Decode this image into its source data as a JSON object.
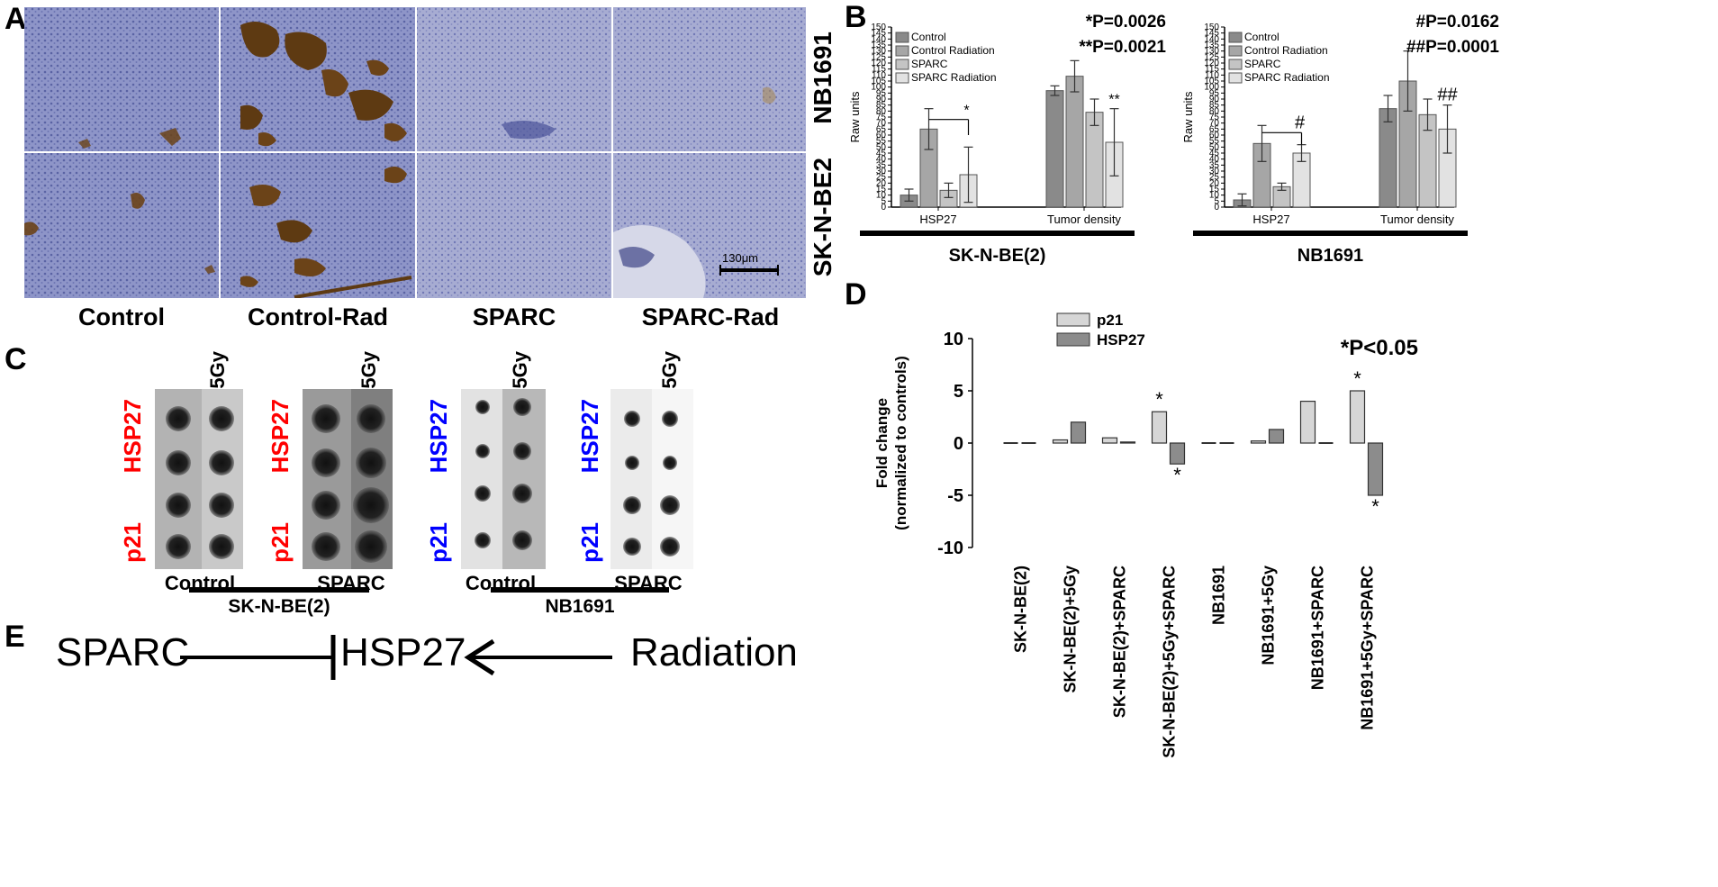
{
  "panels": {
    "A": "A",
    "B": "B",
    "C": "C",
    "D": "D",
    "E": "E"
  },
  "panel_a": {
    "columns": [
      "Control",
      "Control-Rad",
      "SPARC",
      "SPARC-Rad"
    ],
    "rows": [
      "NB1691",
      "SK-N-BE2"
    ],
    "scale_bar": "130μm",
    "colors": {
      "tissue": "#8c93c6",
      "stain": "#6b4318",
      "background": "#c9ccde"
    }
  },
  "panel_c": {
    "blots": [
      {
        "condition": "Control",
        "dose": "5Gy",
        "label_top": "HSP27",
        "label_bottom": "p21",
        "label_color": "#ff0000",
        "cell_line": "SK-N-BE(2)"
      },
      {
        "condition": "SPARC",
        "dose": "5Gy",
        "label_top": "HSP27",
        "label_bottom": "p21",
        "label_color": "#ff0000",
        "cell_line": "SK-N-BE(2)"
      },
      {
        "condition": "Control",
        "dose": "5Gy",
        "label_top": "HSP27",
        "label_bottom": "p21",
        "label_color": "#0000ff",
        "cell_line": "NB1691"
      },
      {
        "condition": "SPARC",
        "dose": "5Gy",
        "label_top": "HSP27",
        "label_bottom": "p21",
        "label_color": "#0000ff",
        "cell_line": "NB1691"
      }
    ],
    "group_labels": [
      "SK-N-BE(2)",
      "NB1691"
    ]
  },
  "panel_e": {
    "left": "SPARC",
    "center": "HSP27",
    "right": "Radiation"
  },
  "chart_data": [
    {
      "type": "bar",
      "title": "SK-N-BE(2)",
      "ylabel": "Raw units",
      "ylim": [
        0,
        150
      ],
      "yticks": [
        0,
        5,
        10,
        15,
        20,
        25,
        30,
        35,
        40,
        45,
        50,
        55,
        60,
        65,
        70,
        75,
        80,
        85,
        90,
        95,
        100,
        105,
        110,
        115,
        120,
        125,
        130,
        135,
        140,
        145,
        150
      ],
      "categories": [
        "HSP27",
        "Tumor density"
      ],
      "series": [
        {
          "name": "Control",
          "values": [
            10,
            97
          ],
          "errors": [
            5,
            4
          ],
          "color": "#8a8a8a"
        },
        {
          "name": "Control Radiation",
          "values": [
            65,
            109
          ],
          "errors": [
            17,
            13
          ],
          "color": "#a6a6a6"
        },
        {
          "name": "SPARC",
          "values": [
            14,
            79
          ],
          "errors": [
            6,
            11
          ],
          "color": "#c4c4c4"
        },
        {
          "name": "SPARC Radiation",
          "values": [
            27,
            54
          ],
          "errors": [
            23,
            28
          ],
          "color": "#e2e2e2"
        }
      ],
      "annotations": [
        "*P=0.0026",
        "**P=0.0021"
      ],
      "marks": [
        "*",
        "**"
      ],
      "legend_position": "top-left"
    },
    {
      "type": "bar",
      "title": "NB1691",
      "ylabel": "Raw units",
      "ylim": [
        0,
        150
      ],
      "yticks": [
        0,
        5,
        10,
        15,
        20,
        25,
        30,
        35,
        40,
        45,
        50,
        55,
        60,
        65,
        70,
        75,
        80,
        85,
        90,
        95,
        100,
        105,
        110,
        115,
        120,
        125,
        130,
        135,
        140,
        145,
        150
      ],
      "categories": [
        "HSP27",
        "Tumor density"
      ],
      "series": [
        {
          "name": "Control",
          "values": [
            6,
            82
          ],
          "errors": [
            5,
            11
          ],
          "color": "#8a8a8a"
        },
        {
          "name": "Control Radiation",
          "values": [
            53,
            105
          ],
          "errors": [
            15,
            25
          ],
          "color": "#a6a6a6"
        },
        {
          "name": "SPARC",
          "values": [
            17,
            77
          ],
          "errors": [
            3,
            13
          ],
          "color": "#c4c4c4"
        },
        {
          "name": "SPARC Radiation",
          "values": [
            45,
            65
          ],
          "errors": [
            7,
            20
          ],
          "color": "#e2e2e2"
        }
      ],
      "annotations": [
        "#P=0.0162",
        "##P=0.0001"
      ],
      "marks": [
        "#",
        "##"
      ],
      "legend_position": "top-left"
    },
    {
      "type": "bar",
      "ylabel": "Fold change\n(normalized to controls)",
      "ylim": [
        -10,
        10
      ],
      "yticks": [
        -10,
        -5,
        0,
        5,
        10
      ],
      "categories": [
        "SK-N-BE(2)",
        "SK-N-BE(2)+5Gy",
        "SK-N-BE(2)+SPARC",
        "SK-N-BE(2)+5Gy+SPARC",
        "NB1691",
        "NB1691+5Gy",
        "NB1691+SPARC",
        "NB1691+5Gy+SPARC"
      ],
      "series": [
        {
          "name": "p21",
          "values": [
            0,
            0.3,
            0.5,
            3,
            0,
            0.2,
            4,
            5
          ],
          "color": "#d6d6d6"
        },
        {
          "name": "HSP27",
          "values": [
            0,
            2,
            0.1,
            -2,
            0,
            1.3,
            0,
            -5
          ],
          "color": "#8c8c8c"
        }
      ],
      "annotation": "*P<0.05",
      "legend_position": "top-left"
    }
  ]
}
